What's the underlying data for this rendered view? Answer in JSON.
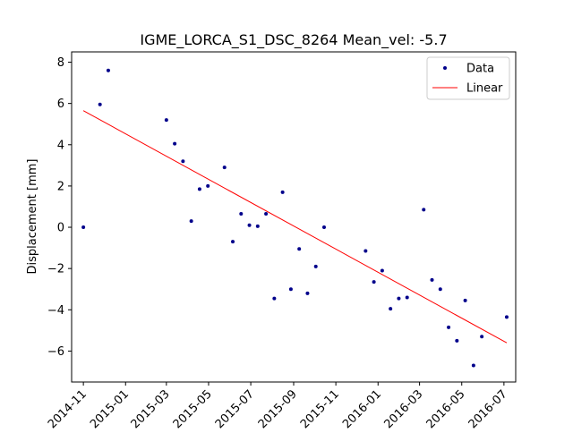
{
  "chart_data": {
    "type": "scatter",
    "title": "IGME_LORCA_S1_DSC_8264    Mean_vel: -5.7",
    "xlabel": "",
    "ylabel": "Displacement [mm]",
    "xlim": [
      "2014-10-15",
      "2016-07-18"
    ],
    "ylim": [
      -7.5,
      8.5
    ],
    "x_ticks": [
      "2014-11",
      "2015-01",
      "2015-03",
      "2015-05",
      "2015-07",
      "2015-09",
      "2015-11",
      "2016-01",
      "2016-03",
      "2016-05",
      "2016-07"
    ],
    "y_ticks": [
      -6,
      -4,
      -2,
      0,
      2,
      4,
      6,
      8
    ],
    "grid": false,
    "legend_position": "top-right",
    "series": [
      {
        "name": "Data",
        "style": "points",
        "color": "#00008b",
        "points": [
          {
            "x": "2014-11-01",
            "y": 0.0
          },
          {
            "x": "2014-11-25",
            "y": 5.95
          },
          {
            "x": "2014-12-07",
            "y": 7.6
          },
          {
            "x": "2015-03-01",
            "y": 5.2
          },
          {
            "x": "2015-03-13",
            "y": 4.05
          },
          {
            "x": "2015-03-25",
            "y": 3.2
          },
          {
            "x": "2015-04-06",
            "y": 0.3
          },
          {
            "x": "2015-04-18",
            "y": 1.85
          },
          {
            "x": "2015-04-30",
            "y": 2.0
          },
          {
            "x": "2015-05-24",
            "y": 2.9
          },
          {
            "x": "2015-06-05",
            "y": -0.7
          },
          {
            "x": "2015-06-17",
            "y": 0.65
          },
          {
            "x": "2015-06-29",
            "y": 0.1
          },
          {
            "x": "2015-07-11",
            "y": 0.05
          },
          {
            "x": "2015-07-23",
            "y": 0.65
          },
          {
            "x": "2015-08-04",
            "y": -3.45
          },
          {
            "x": "2015-08-16",
            "y": 1.7
          },
          {
            "x": "2015-08-28",
            "y": -3.0
          },
          {
            "x": "2015-09-09",
            "y": -1.05
          },
          {
            "x": "2015-09-21",
            "y": -3.2
          },
          {
            "x": "2015-10-03",
            "y": -1.9
          },
          {
            "x": "2015-10-15",
            "y": 0.0
          },
          {
            "x": "2015-12-14",
            "y": -1.15
          },
          {
            "x": "2015-12-26",
            "y": -2.65
          },
          {
            "x": "2016-01-07",
            "y": -2.1
          },
          {
            "x": "2016-01-19",
            "y": -3.95
          },
          {
            "x": "2016-01-31",
            "y": -3.45
          },
          {
            "x": "2016-02-12",
            "y": -3.4
          },
          {
            "x": "2016-03-07",
            "y": 0.85
          },
          {
            "x": "2016-03-19",
            "y": -2.55
          },
          {
            "x": "2016-03-31",
            "y": -3.0
          },
          {
            "x": "2016-04-12",
            "y": -4.85
          },
          {
            "x": "2016-04-24",
            "y": -5.5
          },
          {
            "x": "2016-05-06",
            "y": -3.55
          },
          {
            "x": "2016-05-18",
            "y": -6.7
          },
          {
            "x": "2016-05-30",
            "y": -5.3
          },
          {
            "x": "2016-07-05",
            "y": -4.35
          }
        ]
      },
      {
        "name": "Linear",
        "style": "line",
        "color": "#ff0000",
        "points": [
          {
            "x": "2014-11-01",
            "y": 5.65
          },
          {
            "x": "2016-07-05",
            "y": -5.6
          }
        ]
      }
    ]
  }
}
